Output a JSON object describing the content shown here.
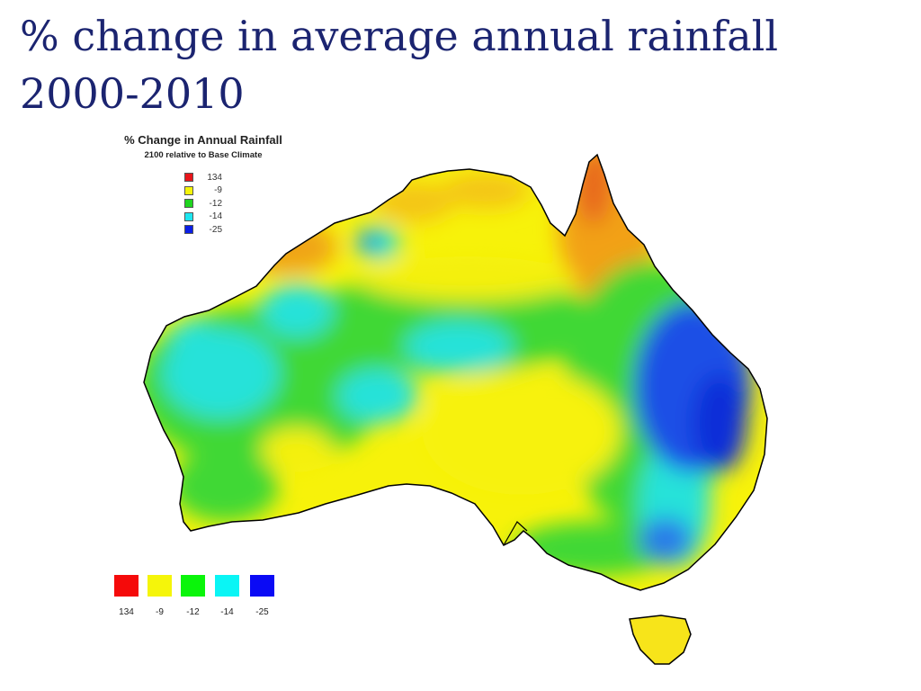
{
  "slide": {
    "title": "% change in average annual rainfall 2000-2010"
  },
  "map": {
    "title": "% Change in Annual Rainfall",
    "subtitle": "2100 relative to Base Climate",
    "legend": [
      {
        "label": "134",
        "color": "#e8151b"
      },
      {
        "label": "-9",
        "color": "#f5f50a"
      },
      {
        "label": "-12",
        "color": "#1fd51f"
      },
      {
        "label": "-14",
        "color": "#1ee6f0"
      },
      {
        "label": "-25",
        "color": "#0a1ee6"
      }
    ]
  },
  "colors": {
    "title": "#1b2470",
    "outline": "#000000"
  }
}
